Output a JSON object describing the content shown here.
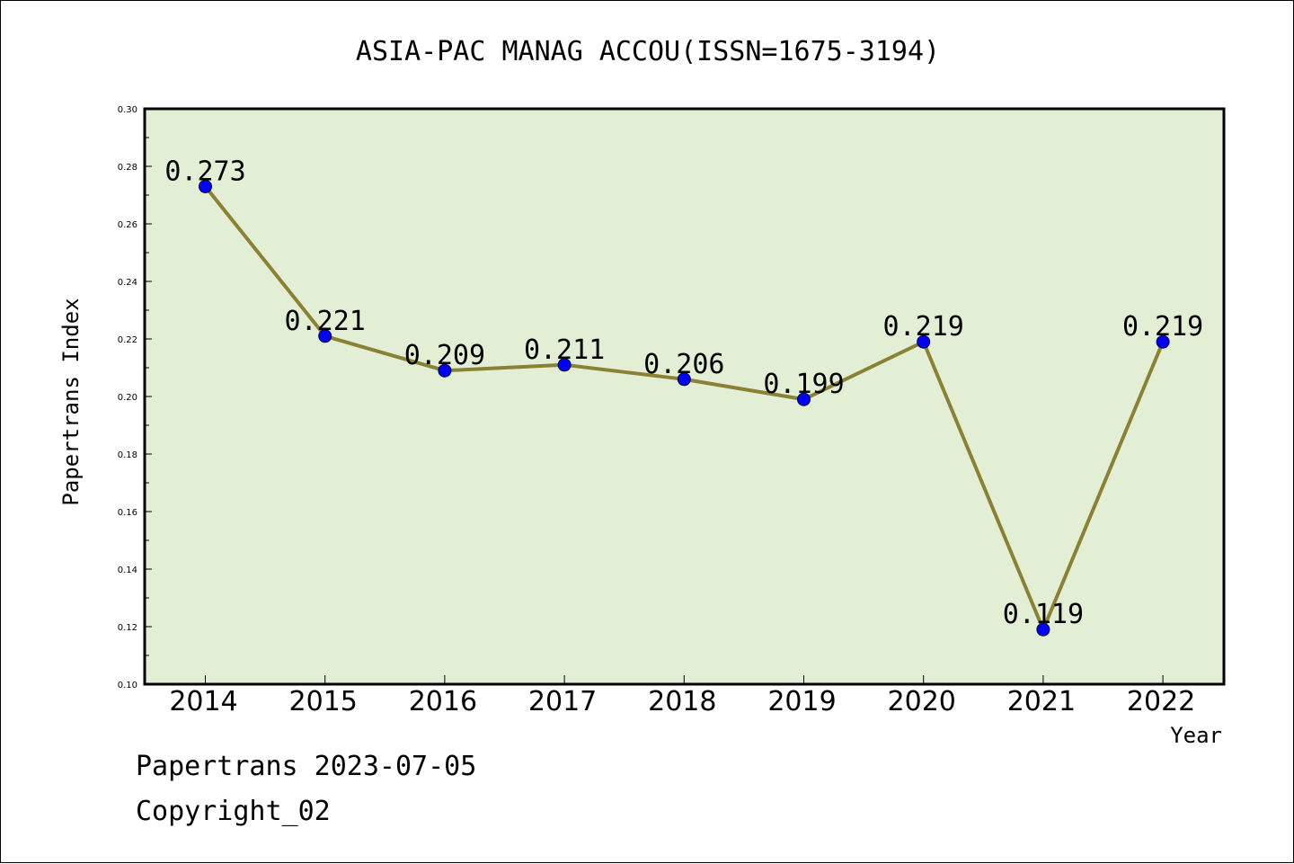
{
  "chart_data": {
    "type": "line",
    "title": "ASIA-PAC MANAG ACCOU(ISSN=1675-3194)",
    "xlabel": "Year",
    "ylabel": "Papertrans Index",
    "categories": [
      "2014",
      "2015",
      "2016",
      "2017",
      "2018",
      "2019",
      "2020",
      "2021",
      "2022"
    ],
    "series": [
      {
        "values": [
          0.273,
          0.221,
          0.209,
          0.211,
          0.206,
          0.199,
          0.219,
          0.119,
          0.219
        ],
        "labels": [
          "0.273",
          "0.221",
          "0.209",
          "0.211",
          "0.206",
          "0.199",
          "0.219",
          "0.119",
          "0.219"
        ]
      }
    ],
    "ylim": [
      0.1,
      0.3
    ],
    "yticks": [
      "0.10",
      "0.12",
      "0.14",
      "0.16",
      "0.18",
      "0.20",
      "0.22",
      "0.24",
      "0.26",
      "0.28",
      "0.30"
    ],
    "grid": false,
    "legend": "none",
    "colors": {
      "plot_background": "#e2efd4",
      "line": "#8b8135",
      "marker": "#0000ff"
    }
  },
  "footer": {
    "line1": "Papertrans 2023-07-05",
    "line2": "Copyright_02"
  }
}
